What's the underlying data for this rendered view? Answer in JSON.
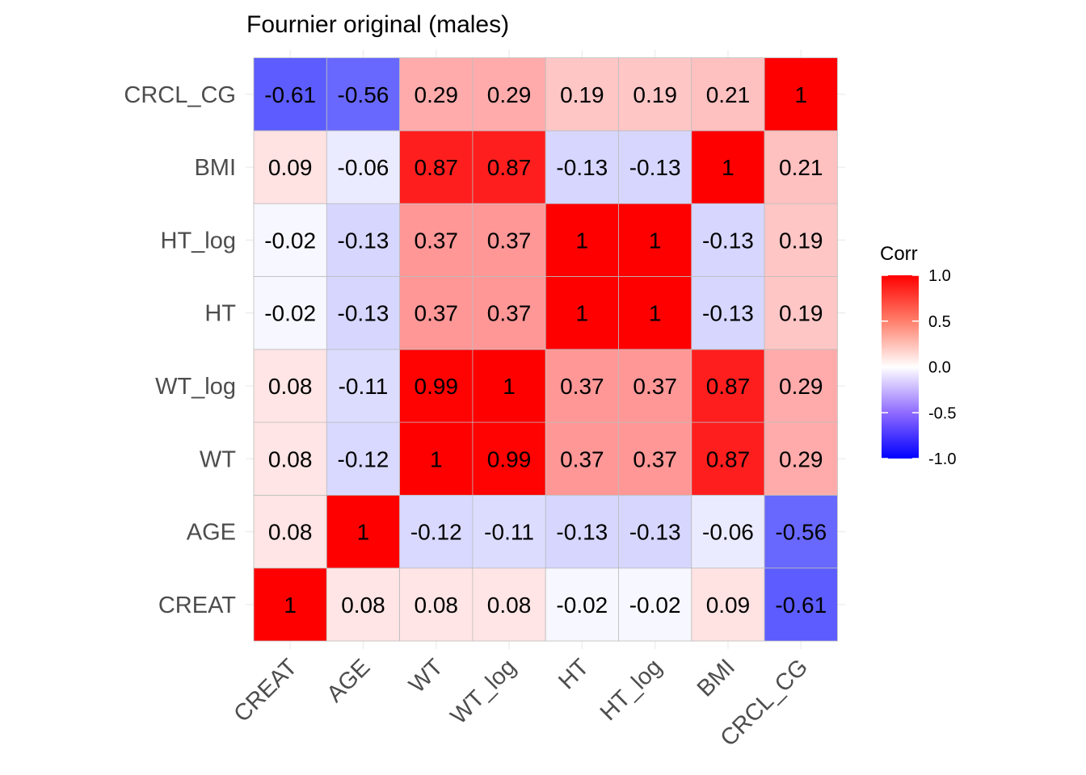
{
  "chart_data": {
    "type": "heatmap",
    "title": "Fournier original (males)",
    "variables": [
      "CREAT",
      "AGE",
      "WT",
      "WT_log",
      "HT",
      "HT_log",
      "BMI",
      "CRCL_CG"
    ],
    "matrix": [
      [
        1,
        0.08,
        0.08,
        0.08,
        -0.02,
        -0.02,
        0.09,
        -0.61
      ],
      [
        0.08,
        1,
        -0.12,
        -0.11,
        -0.13,
        -0.13,
        -0.06,
        -0.56
      ],
      [
        0.08,
        -0.12,
        1,
        0.99,
        0.37,
        0.37,
        0.87,
        0.29
      ],
      [
        0.08,
        -0.11,
        0.99,
        1,
        0.37,
        0.37,
        0.87,
        0.29
      ],
      [
        -0.02,
        -0.13,
        0.37,
        0.37,
        1,
        1,
        -0.13,
        0.19
      ],
      [
        -0.02,
        -0.13,
        0.37,
        0.37,
        1,
        1,
        -0.13,
        0.19
      ],
      [
        0.09,
        -0.06,
        0.87,
        0.87,
        -0.13,
        -0.13,
        1,
        0.21
      ],
      [
        -0.61,
        -0.56,
        0.29,
        0.29,
        0.19,
        0.19,
        0.21,
        1
      ]
    ],
    "legend": {
      "title": "Corr",
      "ticks": [
        "1.0",
        "0.5",
        "0.0",
        "-0.5",
        "-1.0"
      ],
      "range": [
        -1,
        1
      ],
      "placement": "right"
    },
    "colors": {
      "low": "#0000ff",
      "mid": "#ffffff",
      "high": "#ff0000",
      "border": "#bdbdbd"
    }
  }
}
